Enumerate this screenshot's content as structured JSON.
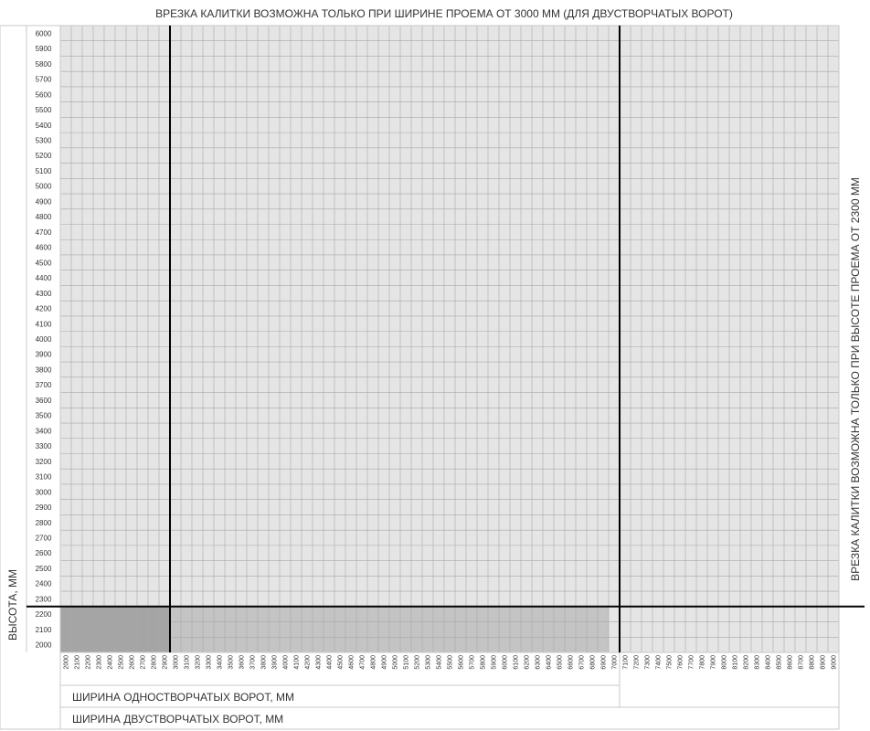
{
  "top_note": "ВРЕЗКА КАЛИТКИ ВОЗМОЖНА ТОЛЬКО ПРИ ШИРИНЕ ПРОЕМА ОТ 3000 ММ (ДЛЯ ДВУСТВОРЧАТЫХ ВОРОТ)",
  "right_note": "ВРЕЗКА КАЛИТКИ ВОЗМОЖНА ТОЛЬКО ПРИ ВЫСОТЕ ПРОЕМА ОТ 2300 ММ",
  "colors": {
    "grid_bg": "#e5e5e5",
    "grid_line": "#a8a8a8",
    "shade_mid": "#c4c4c4",
    "shade_dark": "#a5a5a5",
    "threshold_line": "#000000"
  },
  "chart_data": {
    "type": "heatmap",
    "ylabel": "ВЫСОТА, ММ",
    "xlabel_single": "ШИРИНА ОДНОСТВОРЧАТЫХ ВОРОТ, ММ",
    "xlabel_double": "ШИРИНА ДВУСТВОРЧАТЫХ ВОРОТ, ММ",
    "x_range": [
      2000,
      9000
    ],
    "x_step": 100,
    "y_range": [
      2000,
      6000
    ],
    "y_step": 100,
    "x_ticks": [
      "2000",
      "2100",
      "2200",
      "2300",
      "2400",
      "2500",
      "2600",
      "2700",
      "2800",
      "2900",
      "3000",
      "3100",
      "3200",
      "3300",
      "3400",
      "3500",
      "3600",
      "3700",
      "3800",
      "3900",
      "4000",
      "4100",
      "4200",
      "4300",
      "4400",
      "4500",
      "4600",
      "4700",
      "4800",
      "4900",
      "5000",
      "5100",
      "5200",
      "5300",
      "5400",
      "5500",
      "5600",
      "5700",
      "5800",
      "5900",
      "6000",
      "6100",
      "6200",
      "6300",
      "6400",
      "6500",
      "6600",
      "6700",
      "6800",
      "6900",
      "7000",
      "7100",
      "7200",
      "7300",
      "7400",
      "7500",
      "7600",
      "7700",
      "7800",
      "7900",
      "8000",
      "8100",
      "8200",
      "8300",
      "8400",
      "8500",
      "8600",
      "8700",
      "8800",
      "8900",
      "9000"
    ],
    "y_ticks": [
      "6000",
      "5900",
      "5800",
      "5700",
      "5600",
      "5500",
      "5400",
      "5300",
      "5200",
      "5100",
      "5000",
      "4900",
      "4800",
      "4700",
      "4600",
      "4500",
      "4400",
      "4300",
      "4200",
      "4100",
      "4000",
      "3900",
      "3800",
      "3700",
      "3600",
      "3500",
      "3400",
      "3300",
      "3200",
      "3100",
      "3000",
      "2900",
      "2800",
      "2700",
      "2600",
      "2500",
      "2400",
      "2300",
      "2200",
      "2100",
      "2000"
    ],
    "single_leaf_max_width": 7000,
    "threshold_width": 3000,
    "threshold_height": 2300,
    "shaded_regions": [
      {
        "x": [
          2000,
          3000
        ],
        "y": [
          2000,
          2300
        ],
        "shade": "dark"
      },
      {
        "x": [
          3000,
          7000
        ],
        "y": [
          2000,
          2300
        ],
        "shade": "medium"
      }
    ],
    "grid": true
  }
}
